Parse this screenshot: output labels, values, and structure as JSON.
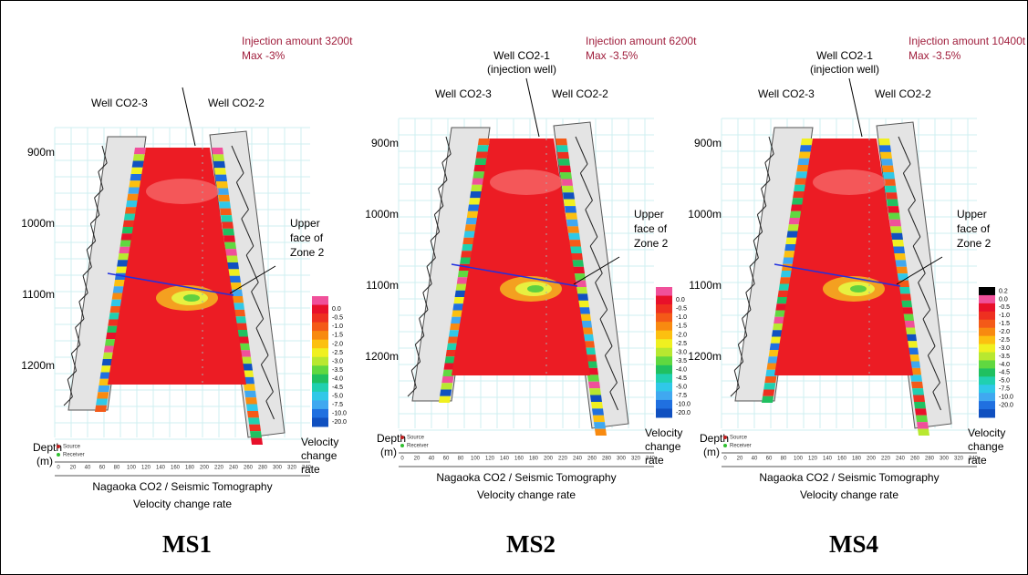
{
  "panels": [
    {
      "label": "MS1",
      "injection": "Injection amount 3200t",
      "max": "Max -3%",
      "well_left": "Well CO2-3",
      "well_right": "Well CO2-2",
      "well_center": null,
      "well_center_sub": null,
      "colorbar": [
        "0.0",
        "-0.5",
        "-1.0",
        "-1.5",
        "-2.0",
        "-2.5",
        "-3.0",
        "-3.5",
        "-4.0",
        "-4.5",
        "-5.0",
        "-7.5",
        "-10.0",
        "-20.0"
      ]
    },
    {
      "label": "MS2",
      "injection": "Injection amount 6200t",
      "max": "Max -3.5%",
      "well_left": "Well CO2-3",
      "well_right": "Well CO2-2",
      "well_center": "Well CO2-1",
      "well_center_sub": "(injection well)",
      "colorbar": [
        "0.0",
        "-0.5",
        "-1.0",
        "-1.5",
        "-2.0",
        "-2.5",
        "-3.0",
        "-3.5",
        "-4.0",
        "-4.5",
        "-5.0",
        "-7.5",
        "-10.0",
        "-20.0"
      ]
    },
    {
      "label": "MS4",
      "injection": "Injection amount 10400t",
      "max": "Max -3.5%",
      "well_left": "Well CO2-3",
      "well_right": "Well CO2-2",
      "well_center": "Well CO2-1",
      "well_center_sub": "(injection well)",
      "colorbar": [
        "0.2",
        "0.0",
        "-0.5",
        "-1.0",
        "-1.5",
        "-2.0",
        "-2.5",
        "-3.0",
        "-3.5",
        "-4.0",
        "-4.5",
        "-5.0",
        "-7.5",
        "-10.0",
        "-20.0"
      ]
    }
  ],
  "depths": [
    "900m",
    "1000m",
    "1100m",
    "1200m"
  ],
  "zone_label": [
    "Upper",
    "face of",
    "Zone 2"
  ],
  "depth_axis": [
    "Depth",
    "(m)"
  ],
  "cbar_title": [
    "Velocity",
    "change",
    "rate"
  ],
  "legend": [
    "Source",
    "Receiver"
  ],
  "xticks": [
    "0",
    "20",
    "40",
    "60",
    "80",
    "100",
    "120",
    "140",
    "160",
    "180",
    "200",
    "220",
    "240",
    "260",
    "280",
    "300",
    "320",
    "340"
  ],
  "plot_title": "Nagaoka CO2 / Seismic Tomography",
  "plot_subtitle": "Velocity change rate"
}
